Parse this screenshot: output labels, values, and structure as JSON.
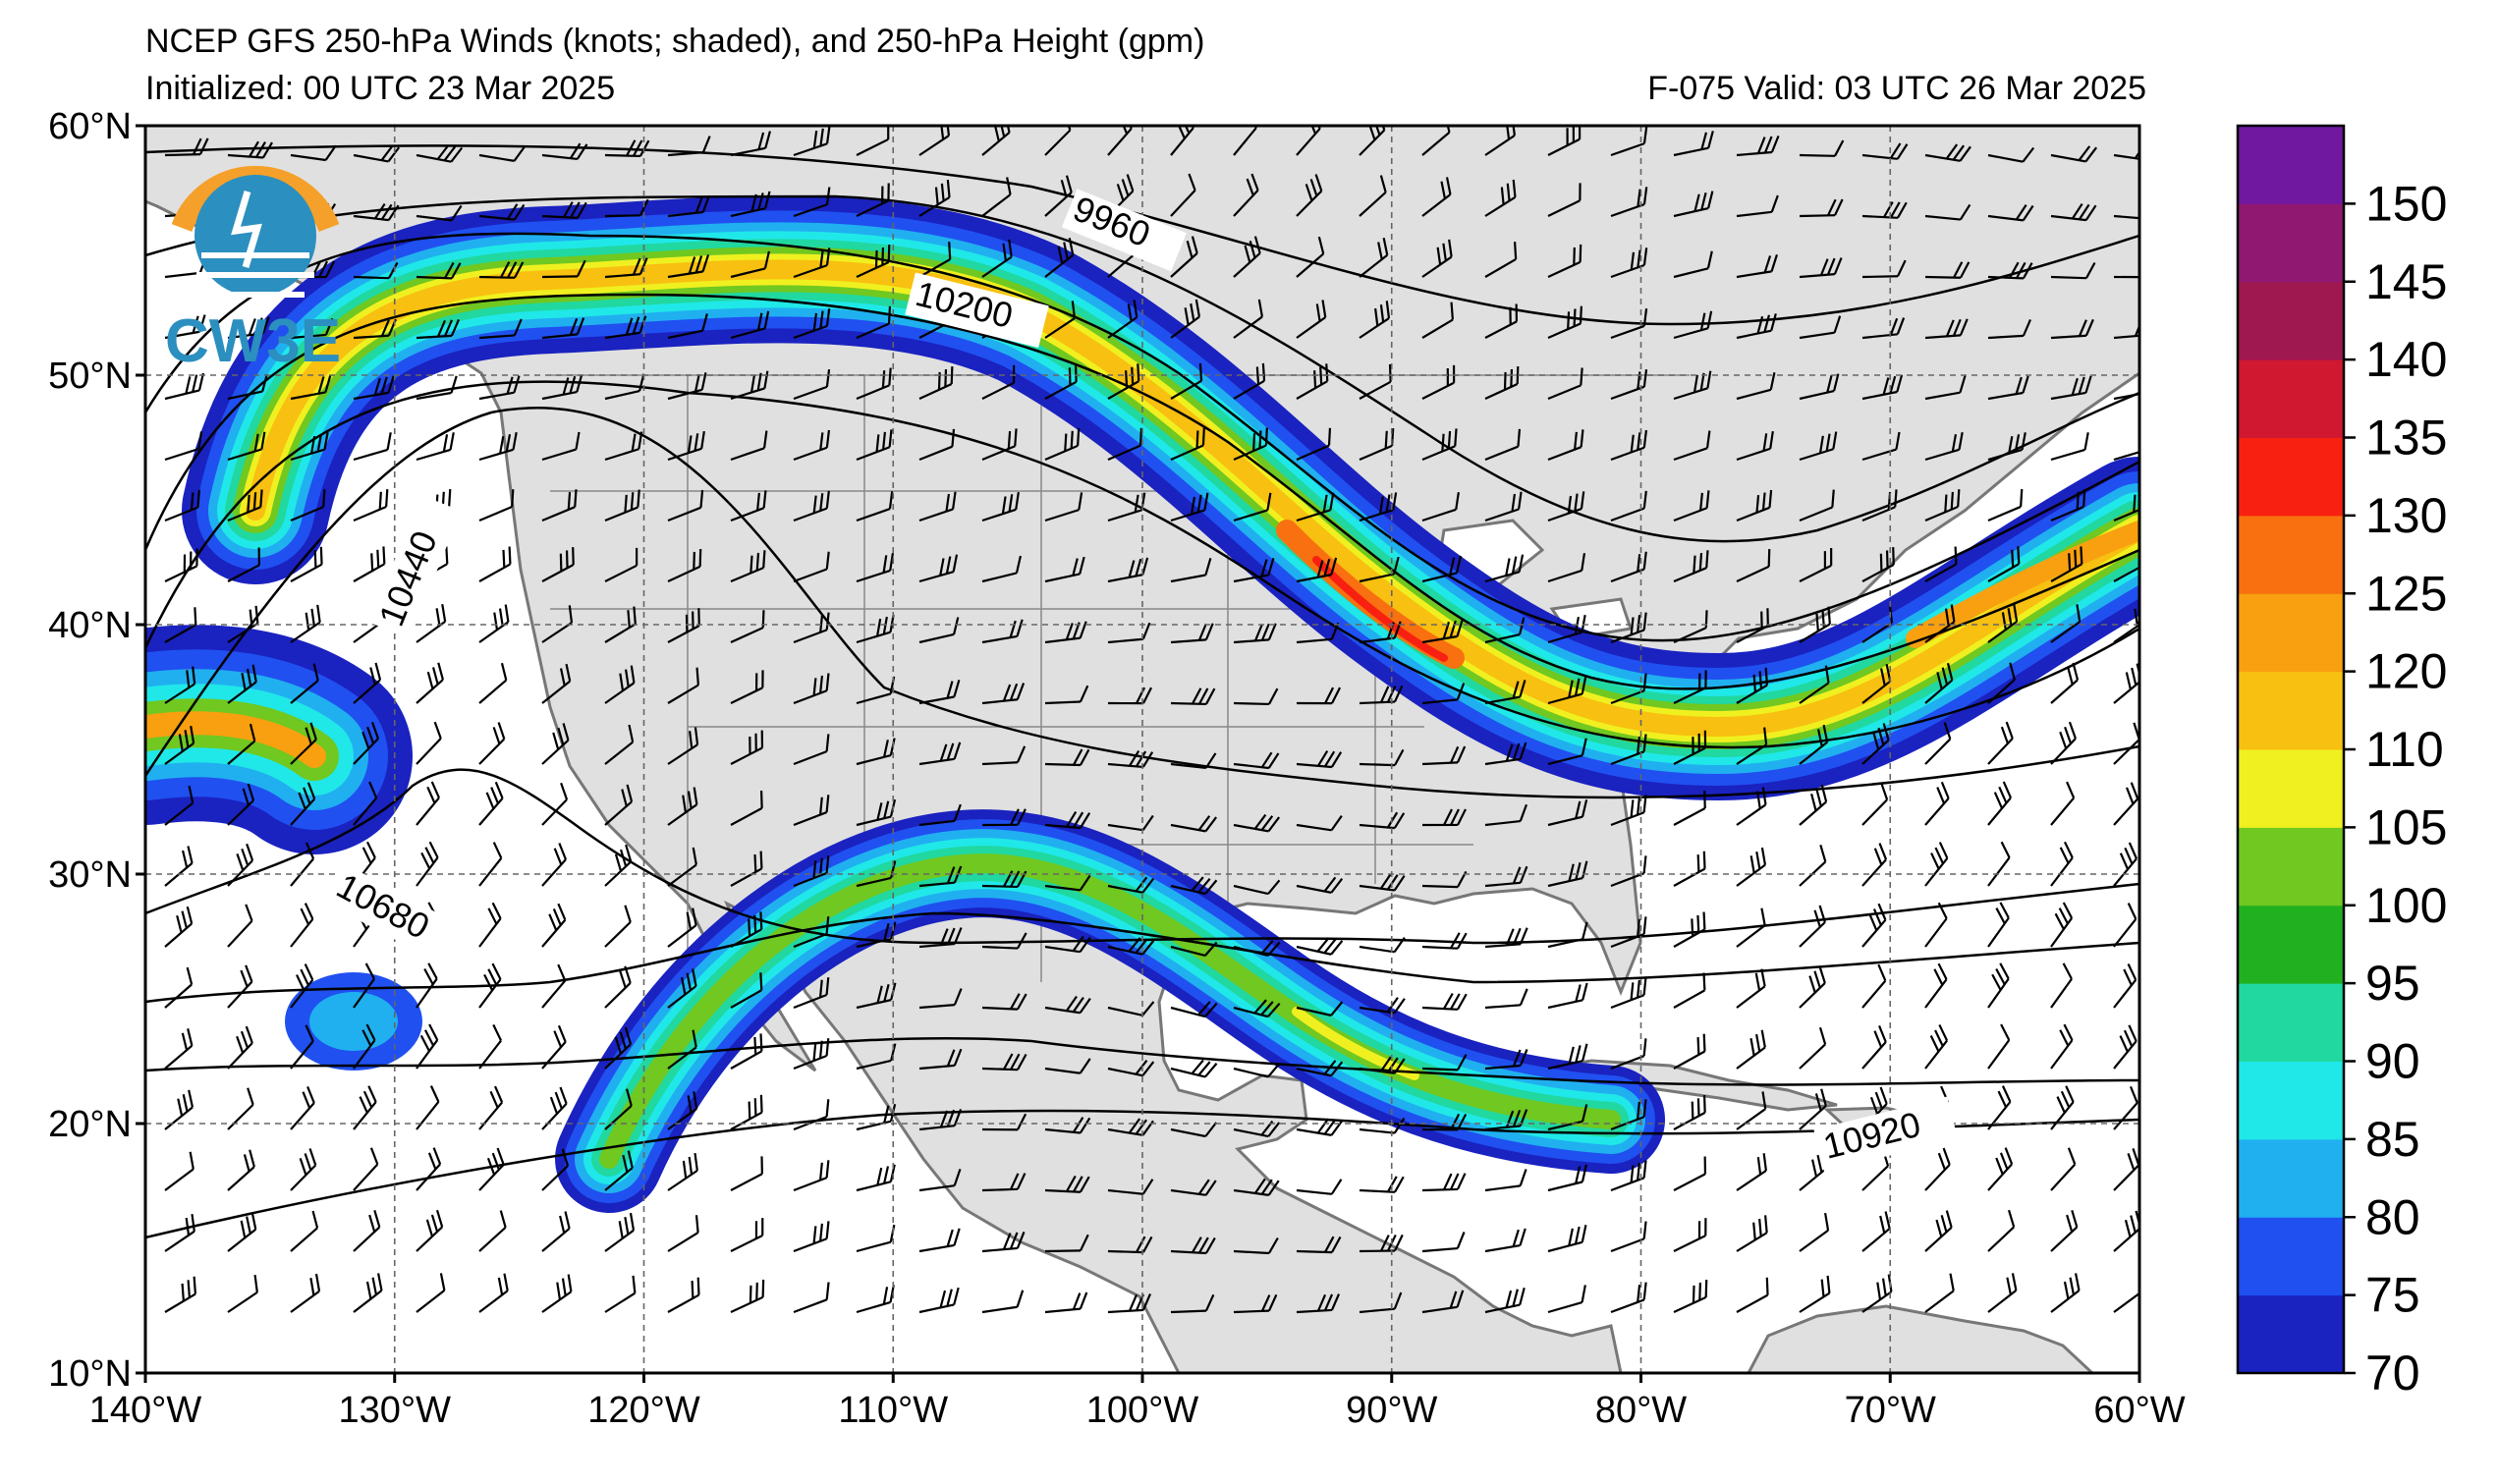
{
  "header": {
    "title": "NCEP GFS 250-hPa Winds (knots; shaded), and 250-hPa Height (gpm)",
    "initialized": "Initialized: 00 UTC 23 Mar 2025",
    "valid": "F-075  Valid: 03 UTC 26 Mar 2025"
  },
  "logo": {
    "text": "CW3E",
    "color": "#2b8fbf",
    "accent": "#f5a02a"
  },
  "map": {
    "lon_range": [
      -140,
      -60
    ],
    "lat_range": [
      10,
      60
    ],
    "lon_labels": [
      "140°W",
      "130°W",
      "120°W",
      "110°W",
      "100°W",
      "90°W",
      "80°W",
      "70°W",
      "60°W"
    ],
    "lat_labels": [
      "60°N",
      "50°N",
      "40°N",
      "30°N",
      "20°N",
      "10°N"
    ],
    "grid": "dashed every 10°",
    "land_color": "#e0e0e0",
    "height_labels": [
      "9960",
      "10200",
      "10440",
      "10680",
      "10920"
    ]
  },
  "colorbar": {
    "levels": [
      70,
      75,
      80,
      85,
      90,
      95,
      100,
      105,
      110,
      120,
      125,
      130,
      135,
      140,
      145,
      150,
      155
    ],
    "labels": [
      "70",
      "75",
      "80",
      "85",
      "90",
      "95",
      "100",
      "105",
      "110",
      "120",
      "125",
      "130",
      "135",
      "140",
      "145",
      "150"
    ],
    "colors": [
      "#1a22c0",
      "#2050f0",
      "#20b0f0",
      "#20e8e8",
      "#20d8a0",
      "#20b020",
      "#70c820",
      "#f0f020",
      "#f8c010",
      "#f8a010",
      "#f87010",
      "#f82010",
      "#d01830",
      "#a01850",
      "#901870",
      "#7018a0"
    ]
  }
}
